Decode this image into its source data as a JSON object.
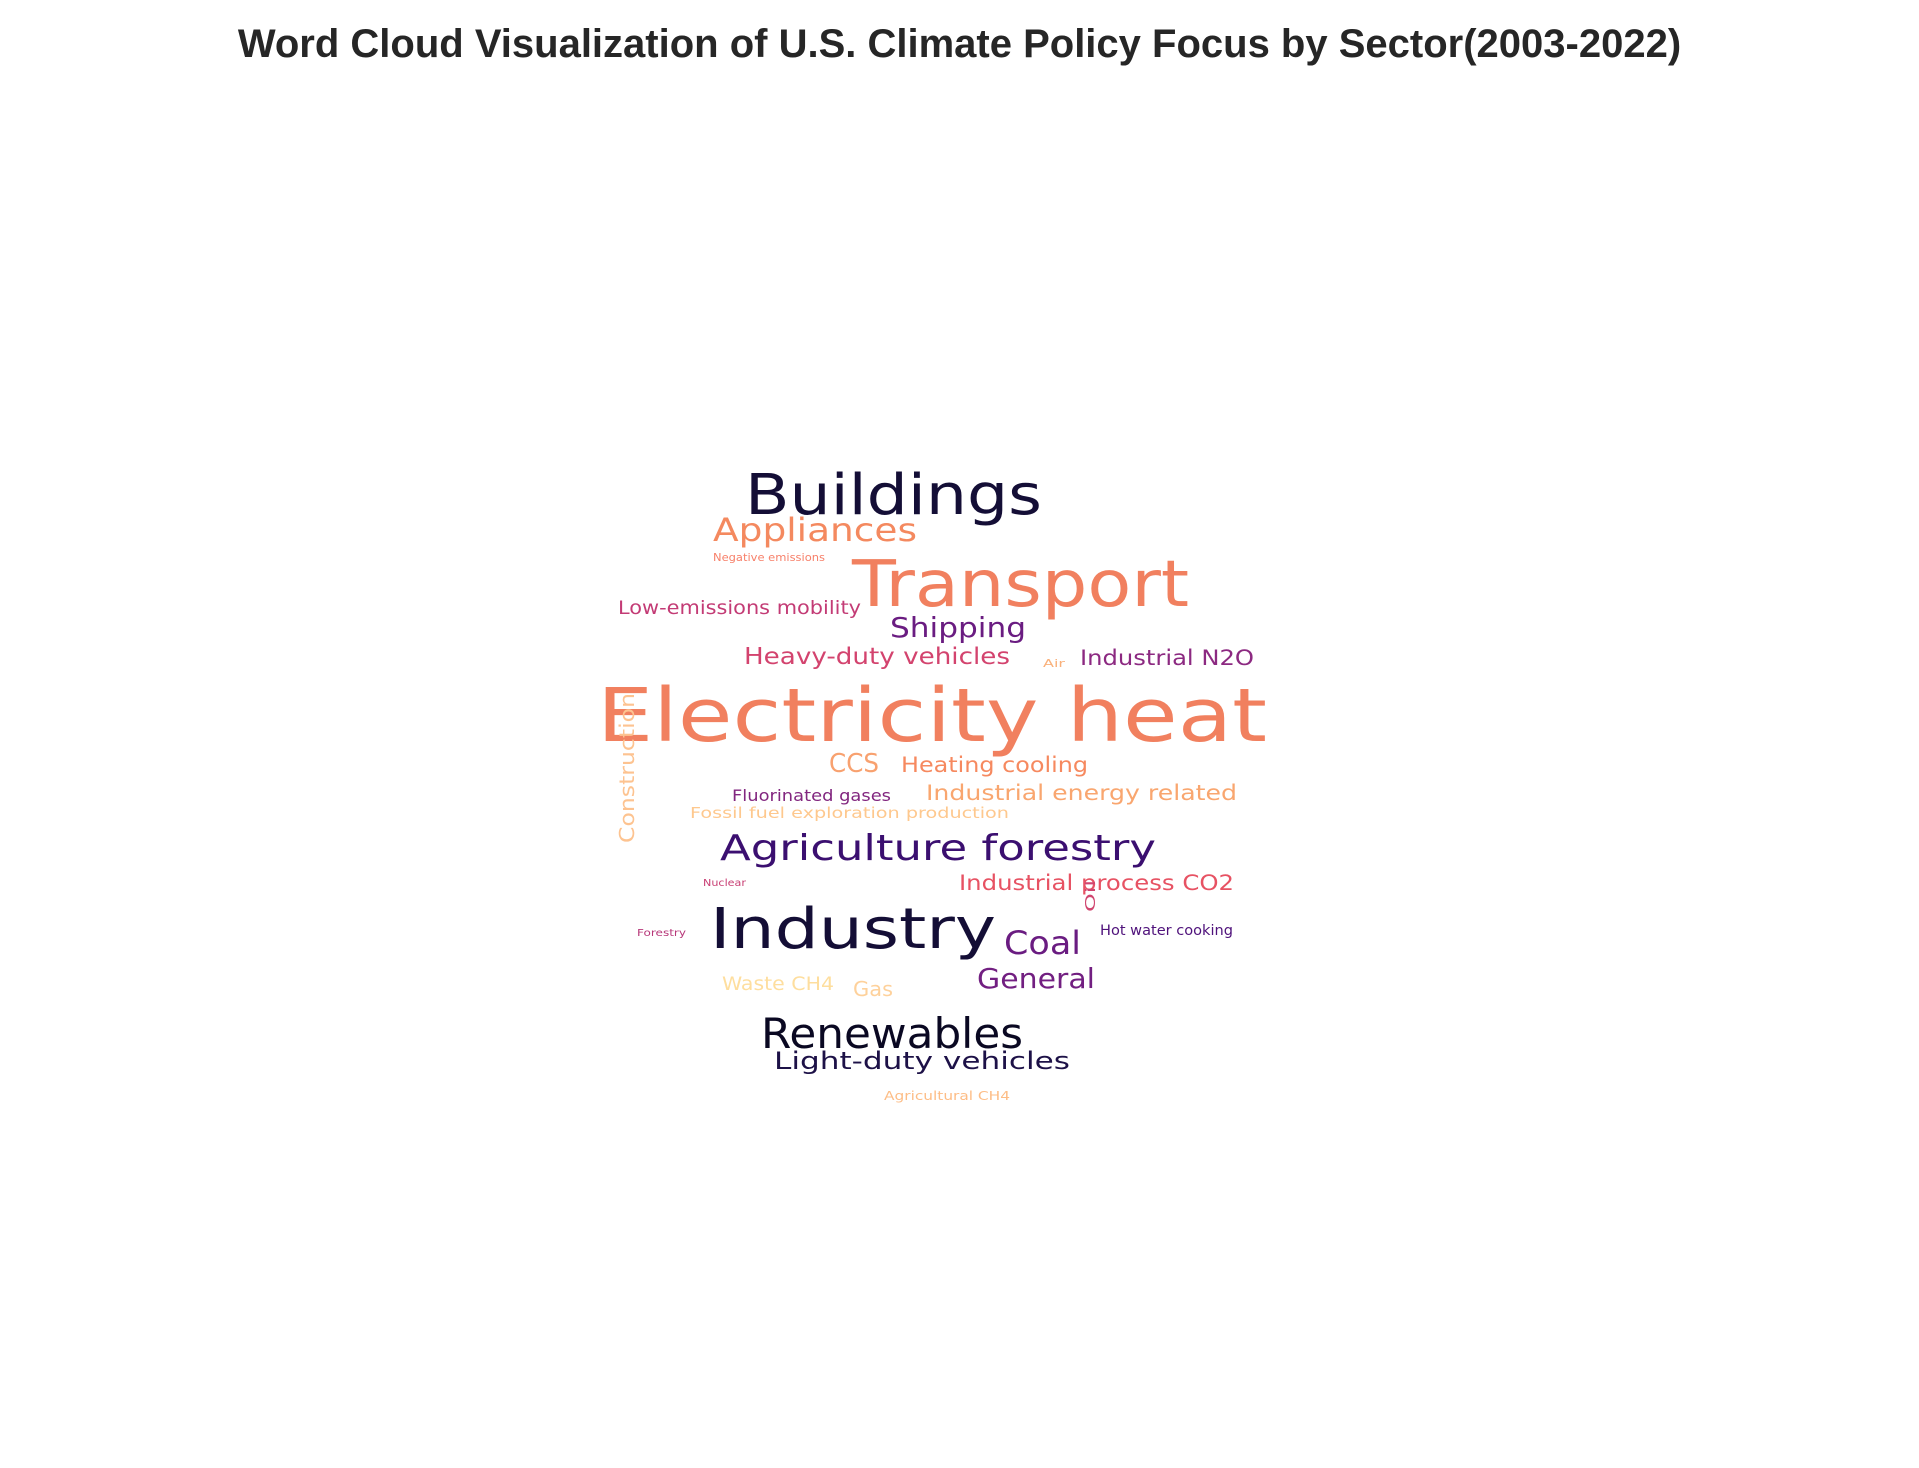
{
  "chart_data": {
    "type": "wordcloud",
    "title": "Word Cloud Visualization of U.S. Climate Policy Focus by Sector(2003-2022)",
    "colormap": "magma",
    "words": [
      {
        "text": "Electricity heat",
        "color": "#f1805f"
      },
      {
        "text": "Transport",
        "color": "#f1805f"
      },
      {
        "text": "Buildings",
        "color": "#140e36"
      },
      {
        "text": "Industry",
        "color": "#140e36"
      },
      {
        "text": "Renewables",
        "color": "#0a0822"
      },
      {
        "text": "Agriculture forestry",
        "color": "#3b0f70"
      },
      {
        "text": "Appliances",
        "color": "#f4895f"
      },
      {
        "text": "Shipping",
        "color": "#6a1c81"
      },
      {
        "text": "Coal",
        "color": "#6a1c81"
      },
      {
        "text": "General",
        "color": "#721f81"
      },
      {
        "text": "Light-duty vehicles",
        "color": "#1d1147"
      },
      {
        "text": "CCS",
        "color": "#f8a16f"
      },
      {
        "text": "Heavy-duty vehicles",
        "color": "#d3436e"
      },
      {
        "text": "Heating cooling",
        "color": "#f6895f"
      },
      {
        "text": "Industrial energy related",
        "color": "#f9a66f"
      },
      {
        "text": "Industrial process CO2",
        "color": "#e75263"
      },
      {
        "text": "Industrial N2O",
        "color": "#8c2981"
      },
      {
        "text": "Low-emissions mobility",
        "color": "#c33b75"
      },
      {
        "text": "Fluorinated gases",
        "color": "#82267f"
      },
      {
        "text": "Fossil fuel exploration production",
        "color": "#fec88e"
      },
      {
        "text": "Construction",
        "color": "#fdc390"
      },
      {
        "text": "Waste CH4",
        "color": "#fede9e"
      },
      {
        "text": "Gas",
        "color": "#fed19b"
      },
      {
        "text": "Hot water cooking",
        "color": "#4f127b"
      },
      {
        "text": "Oil",
        "color": "#d0456f"
      },
      {
        "text": "Negative emissions",
        "color": "#f7806a"
      },
      {
        "text": "Agricultural CH4",
        "color": "#fdbd86"
      },
      {
        "text": "Air",
        "color": "#f9b07a"
      },
      {
        "text": "Nuclear",
        "color": "#c83e73"
      },
      {
        "text": "Forestry",
        "color": "#b73779"
      }
    ]
  }
}
